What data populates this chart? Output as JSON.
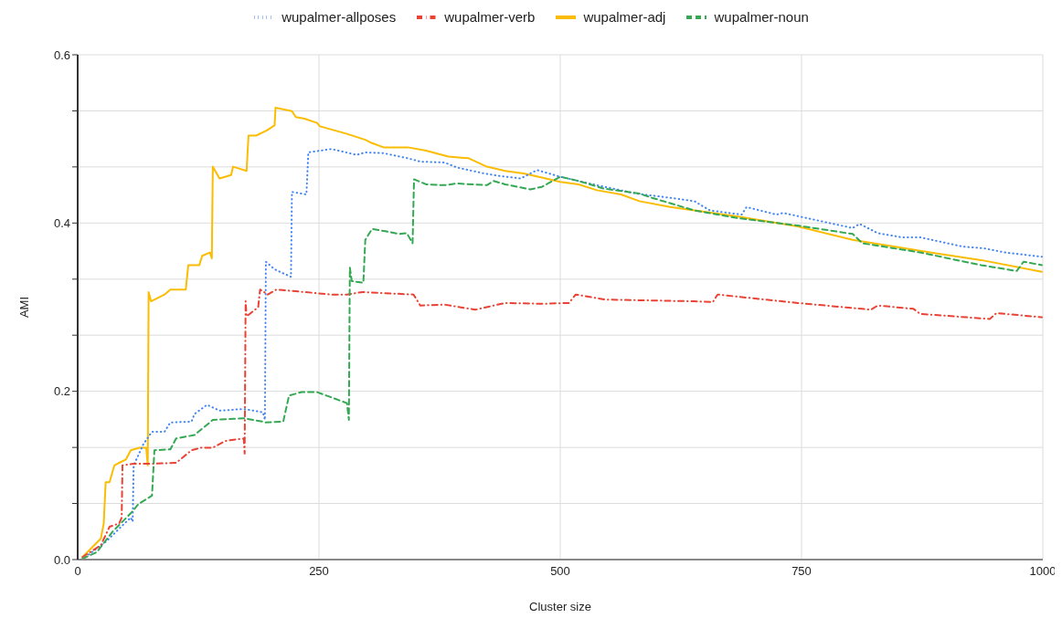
{
  "chart_data": {
    "type": "line",
    "xlabel": "Cluster size",
    "ylabel": "AMI",
    "xlim": [
      0,
      1000
    ],
    "xticks": [
      0,
      250,
      500,
      750,
      1000
    ],
    "ylim": [
      0,
      0.6
    ],
    "yticks": [
      {
        "value": 0,
        "label": "0.0"
      },
      {
        "value": 0.0667,
        "label": null
      },
      {
        "value": 0.1333,
        "label": null
      },
      {
        "value": 0.2,
        "label": "0.2"
      },
      {
        "value": 0.2667,
        "label": null
      },
      {
        "value": 0.3333,
        "label": null
      },
      {
        "value": 0.4,
        "label": "0.4"
      },
      {
        "value": 0.4667,
        "label": null
      },
      {
        "value": 0.5333,
        "label": null
      },
      {
        "value": 0.6,
        "label": "0.6"
      }
    ],
    "grid": true,
    "legend": "top",
    "marker": "none",
    "series": [
      {
        "name": "wupalmer-allposes",
        "color": "#4285f4",
        "line_style": "dotted",
        "x": [
          8,
          30,
          45,
          55,
          57,
          58,
          68,
          77,
          90,
          96,
          118,
          121,
          134,
          147,
          172,
          192,
          194,
          195,
          204,
          221,
          222,
          237,
          239,
          251,
          263,
          289,
          298,
          317,
          342,
          355,
          380,
          393,
          421,
          437,
          459,
          476,
          500,
          538,
          579,
          614,
          639,
          655,
          688,
          693,
          724,
          731,
          803,
          810,
          829,
          854,
          873,
          917,
          939,
          961,
          999
        ],
        "values": [
          0.003,
          0.022,
          0.039,
          0.05,
          0.045,
          0.112,
          0.137,
          0.152,
          0.152,
          0.163,
          0.164,
          0.173,
          0.184,
          0.177,
          0.179,
          0.175,
          0.166,
          0.354,
          0.345,
          0.336,
          0.437,
          0.434,
          0.484,
          0.486,
          0.488,
          0.481,
          0.484,
          0.483,
          0.477,
          0.473,
          0.472,
          0.466,
          0.459,
          0.456,
          0.453,
          0.463,
          0.455,
          0.445,
          0.435,
          0.43,
          0.426,
          0.415,
          0.41,
          0.419,
          0.41,
          0.412,
          0.394,
          0.399,
          0.388,
          0.383,
          0.383,
          0.372,
          0.37,
          0.365,
          0.36
        ]
      },
      {
        "name": "wupalmer-verb",
        "color": "#ea4335",
        "line_style": "dashdot",
        "x": [
          5,
          24,
          33,
          43,
          45.6,
          46.4,
          58,
          80,
          102,
          118,
          128,
          140,
          153,
          172,
          173,
          174,
          175,
          187,
          189,
          197,
          206,
          235,
          263,
          279,
          295,
          348,
          355,
          380,
          412,
          443,
          481,
          509,
          516,
          547,
          639,
          658,
          663,
          746,
          822,
          829,
          866,
          873,
          945,
          952,
          999
        ],
        "values": [
          0.003,
          0.017,
          0.039,
          0.043,
          0.05,
          0.112,
          0.114,
          0.114,
          0.115,
          0.13,
          0.133,
          0.133,
          0.141,
          0.144,
          0.126,
          0.307,
          0.289,
          0.3,
          0.321,
          0.315,
          0.321,
          0.318,
          0.315,
          0.315,
          0.318,
          0.315,
          0.302,
          0.303,
          0.297,
          0.305,
          0.304,
          0.305,
          0.315,
          0.309,
          0.307,
          0.306,
          0.315,
          0.305,
          0.297,
          0.302,
          0.298,
          0.292,
          0.286,
          0.293,
          0.288
        ]
      },
      {
        "name": "wupalmer-adj",
        "color": "#fbbc04",
        "line_style": "solid",
        "x": [
          5,
          24,
          27,
          29,
          33,
          38,
          43,
          50,
          55,
          64,
          71,
          72.6,
          73.5,
          76,
          90,
          96,
          112,
          114.6,
          126,
          129,
          137,
          139,
          140,
          147,
          159,
          161,
          175,
          177,
          185,
          196,
          204,
          205,
          222,
          226,
          235,
          248,
          251,
          279,
          298,
          305,
          317,
          342,
          361,
          384,
          405,
          424,
          443,
          462,
          481,
          500,
          519,
          538,
          563,
          582,
          614,
          639,
          683,
          746,
          803,
          873,
          936,
          999
        ],
        "values": [
          0.003,
          0.025,
          0.043,
          0.092,
          0.092,
          0.112,
          0.115,
          0.119,
          0.13,
          0.133,
          0.133,
          0.112,
          0.318,
          0.307,
          0.315,
          0.321,
          0.321,
          0.35,
          0.35,
          0.361,
          0.365,
          0.358,
          0.467,
          0.453,
          0.457,
          0.467,
          0.462,
          0.504,
          0.504,
          0.51,
          0.516,
          0.537,
          0.533,
          0.526,
          0.524,
          0.519,
          0.515,
          0.506,
          0.499,
          0.495,
          0.49,
          0.49,
          0.486,
          0.479,
          0.477,
          0.467,
          0.462,
          0.459,
          0.454,
          0.449,
          0.446,
          0.439,
          0.434,
          0.426,
          0.419,
          0.415,
          0.408,
          0.396,
          0.38,
          0.367,
          0.356,
          0.342
        ]
      },
      {
        "name": "wupalmer-noun",
        "color": "#34a853",
        "line_style": "dashed",
        "x": [
          5,
          20,
          36,
          55,
          63,
          77,
          79.5,
          96,
          102,
          121,
          140,
          172,
          192,
          194,
          213,
          219,
          232,
          248,
          279,
          281,
          282,
          284,
          296,
          298,
          305,
          320,
          333,
          341,
          347,
          348.5,
          361,
          380,
          393,
          424,
          431,
          443,
          469,
          481,
          500,
          519,
          545,
          582,
          595,
          639,
          683,
          746,
          803,
          813,
          873,
          936,
          973,
          980,
          999
        ],
        "values": [
          0.001,
          0.009,
          0.033,
          0.055,
          0.066,
          0.076,
          0.13,
          0.131,
          0.144,
          0.148,
          0.166,
          0.168,
          0.164,
          0.163,
          0.164,
          0.195,
          0.199,
          0.199,
          0.186,
          0.166,
          0.347,
          0.331,
          0.329,
          0.38,
          0.393,
          0.39,
          0.387,
          0.388,
          0.376,
          0.452,
          0.446,
          0.445,
          0.447,
          0.445,
          0.45,
          0.446,
          0.44,
          0.443,
          0.455,
          0.45,
          0.441,
          0.435,
          0.43,
          0.415,
          0.406,
          0.397,
          0.387,
          0.376,
          0.365,
          0.35,
          0.343,
          0.354,
          0.35
        ]
      }
    ]
  }
}
